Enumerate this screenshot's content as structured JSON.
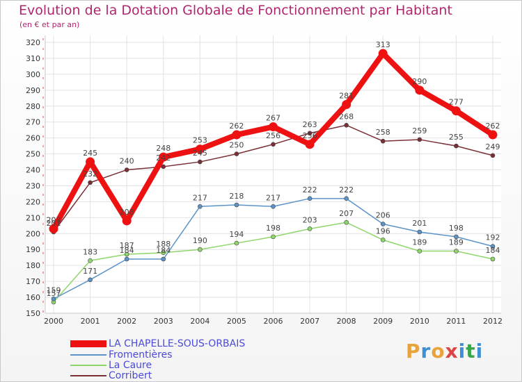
{
  "header": {
    "title": "Evolution de la Dotation Globale de Fonctionnement par Habitant",
    "subtitle": "(en € et par an)"
  },
  "brand": {
    "letters": [
      "P",
      "r",
      "o",
      "x",
      "i",
      "t",
      "i"
    ],
    "colors": [
      "#e8a33a",
      "#3d8fd6",
      "#e8a33a",
      "#d44",
      "#3d8fd6",
      "#3aa64a",
      "#3d8fd6"
    ]
  },
  "chart_data": {
    "type": "line",
    "x": [
      "2000",
      "2001",
      "2002",
      "2003",
      "2004",
      "2005",
      "2006",
      "2007",
      "2008",
      "2009",
      "2010",
      "2011",
      "2012"
    ],
    "ylim": [
      150,
      320
    ],
    "yticks": [
      150,
      160,
      170,
      180,
      190,
      200,
      210,
      220,
      230,
      240,
      250,
      260,
      270,
      280,
      290,
      300,
      310,
      320
    ],
    "grid": true,
    "legend_position": "bottom-left",
    "series": [
      {
        "name": "Corribert",
        "color": "#7a2f35",
        "values": [
          201,
          232,
          240,
          242,
          245,
          250,
          256,
          263,
          268,
          258,
          259,
          255,
          249
        ],
        "labels": [
          "201",
          "232",
          "240",
          "242",
          "245",
          "250",
          "256",
          "263",
          "268",
          "258",
          "259",
          "255",
          "249"
        ]
      },
      {
        "name": "La Caure",
        "color": "#8ed66a",
        "values": [
          157,
          183,
          187,
          188,
          190,
          194,
          198,
          203,
          207,
          196,
          189,
          189,
          184
        ],
        "labels": [
          "157",
          "183",
          "187",
          "188",
          "190",
          "194",
          "198",
          "203",
          "207",
          "196",
          "189",
          "189",
          "184"
        ]
      },
      {
        "name": "Fromentières",
        "color": "#5b93c8",
        "values": [
          159,
          171,
          184,
          184,
          217,
          218,
          217,
          222,
          222,
          206,
          201,
          198,
          192
        ],
        "labels": [
          "159",
          "171",
          "184",
          "184",
          "217",
          "218",
          "217",
          "222",
          "222",
          "206",
          "201",
          "198",
          "192"
        ]
      },
      {
        "name": "LA CHAPELLE-SOUS-ORBAIS",
        "color": "#ee1111",
        "values": [
          203,
          245,
          208,
          248,
          253,
          262,
          267,
          256,
          281,
          313,
          290,
          277,
          262
        ],
        "labels": [
          "203",
          "245",
          "208",
          "248",
          "253",
          "262",
          "267",
          "256",
          "281",
          "313",
          "290",
          "277",
          "262"
        ]
      }
    ],
    "legend": [
      "LA CHAPELLE-SOUS-ORBAIS",
      "Fromentières",
      "La Caure",
      "Corribert"
    ]
  }
}
